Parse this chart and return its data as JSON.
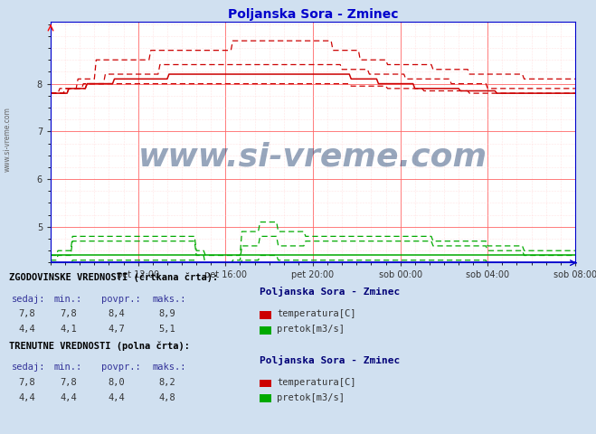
{
  "title": "Poljanska Sora - Zminec",
  "title_color": "#0000cc",
  "bg_color": "#d0e0f0",
  "plot_bg_color": "#ffffff",
  "x_labels": [
    "pet 12:00",
    "pet 16:00",
    "pet 20:00",
    "sob 00:00",
    "sob 04:00",
    "sob 08:00"
  ],
  "x_ticks": [
    48,
    96,
    144,
    192,
    240,
    288
  ],
  "x_total": 288,
  "ylim_min": 4.25,
  "ylim_max": 9.3,
  "yticks": [
    5,
    6,
    7,
    8
  ],
  "temp_color": "#cc0000",
  "flow_color": "#00aa00",
  "watermark": "www.si-vreme.com",
  "watermark_color": "#1a3a6b",
  "axis_color": "#0000cc",
  "grid_color_major": "#ff6666",
  "grid_color_minor": "#ffcccc",
  "sidebar_text": "www.si-vreme.com",
  "station_name": "Poljanska Sora - Zminec",
  "legend_texts": [
    "ZGODOVINSKE VREDNOSTI (črtkana črta):",
    "TRENUTNE VREDNOSTI (polna črta):"
  ],
  "headers": [
    "sedaj:",
    "min.:",
    "povpr.:",
    "maks.:"
  ],
  "hist_temp_vals": [
    "7,8",
    "7,8",
    "8,4",
    "8,9"
  ],
  "hist_flow_vals": [
    "4,4",
    "4,1",
    "4,7",
    "5,1"
  ],
  "curr_temp_vals": [
    "7,8",
    "7,8",
    "8,0",
    "8,2"
  ],
  "curr_flow_vals": [
    "4,4",
    "4,4",
    "4,4",
    "4,8"
  ]
}
